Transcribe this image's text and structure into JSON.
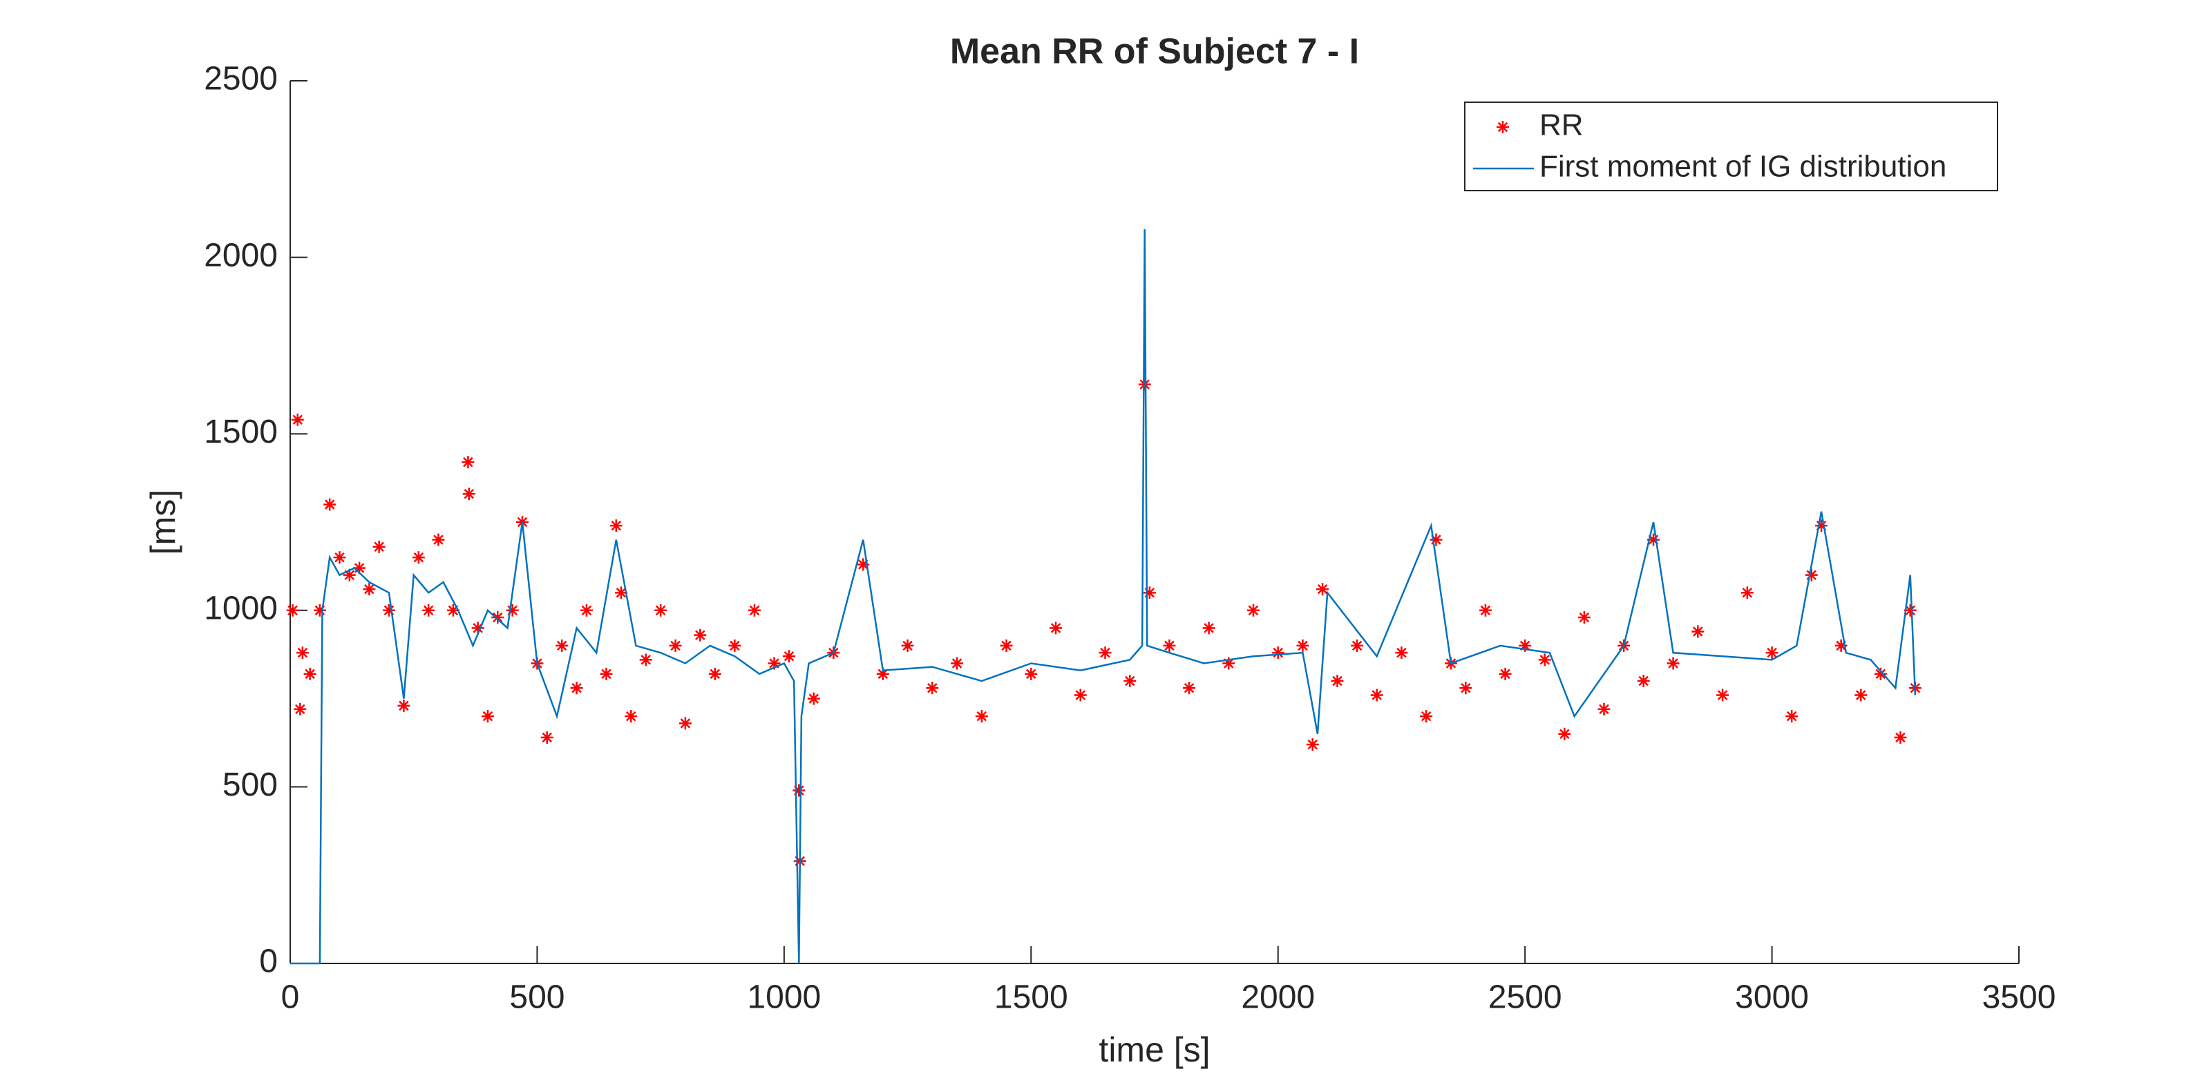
{
  "chart_data": {
    "type": "scatter-line",
    "title": "Mean RR of Subject 7 - I",
    "xlabel": "time [s]",
    "ylabel": "[ms]",
    "xlim": [
      0,
      3500
    ],
    "xticks": [
      0,
      500,
      1000,
      1500,
      2000,
      2500,
      3000,
      3500
    ],
    "ylim": [
      0,
      2500
    ],
    "yticks": [
      0,
      500,
      1000,
      1500,
      2000,
      2500
    ],
    "legend": "northeast",
    "series": [
      {
        "name": "RR",
        "kind": "marker",
        "color": "#ff0000",
        "x": [
          5,
          15,
          20,
          25,
          40,
          60,
          80,
          100,
          120,
          140,
          160,
          180,
          200,
          230,
          260,
          280,
          300,
          330,
          360,
          362,
          380,
          400,
          420,
          450,
          470,
          500,
          520,
          550,
          580,
          600,
          640,
          660,
          670,
          690,
          720,
          750,
          780,
          800,
          830,
          860,
          900,
          940,
          980,
          1010,
          1030,
          1032,
          1060,
          1100,
          1160,
          1200,
          1250,
          1300,
          1350,
          1400,
          1450,
          1500,
          1550,
          1600,
          1650,
          1700,
          1730,
          1740,
          1780,
          1820,
          1860,
          1900,
          1950,
          2000,
          2050,
          2070,
          2090,
          2120,
          2160,
          2200,
          2250,
          2300,
          2320,
          2350,
          2380,
          2420,
          2460,
          2500,
          2540,
          2580,
          2620,
          2660,
          2700,
          2740,
          2760,
          2800,
          2850,
          2900,
          2950,
          3000,
          3040,
          3080,
          3100,
          3140,
          3180,
          3220,
          3260,
          3280,
          3290
        ],
        "values": [
          1000,
          1540,
          720,
          880,
          820,
          1000,
          1300,
          1150,
          1100,
          1120,
          1060,
          1180,
          1000,
          730,
          1150,
          1000,
          1200,
          1000,
          1420,
          1330,
          950,
          700,
          980,
          1000,
          1250,
          850,
          640,
          900,
          780,
          1000,
          820,
          1240,
          1050,
          700,
          860,
          1000,
          900,
          680,
          930,
          820,
          900,
          1000,
          850,
          870,
          490,
          290,
          750,
          880,
          1130,
          820,
          900,
          780,
          850,
          700,
          900,
          820,
          950,
          760,
          880,
          800,
          1640,
          1050,
          900,
          780,
          950,
          850,
          1000,
          880,
          900,
          620,
          1060,
          800,
          900,
          760,
          880,
          700,
          1200,
          850,
          780,
          1000,
          820,
          900,
          860,
          650,
          980,
          720,
          900,
          800,
          1200,
          850,
          940,
          760,
          1050,
          880,
          700,
          1100,
          1240,
          900,
          760,
          820,
          640,
          1000,
          780
        ]
      },
      {
        "name": "First moment of IG distribution",
        "kind": "line",
        "color": "#0072bd",
        "x": [
          0,
          60,
          65,
          80,
          100,
          130,
          160,
          200,
          230,
          250,
          280,
          310,
          340,
          370,
          400,
          440,
          470,
          500,
          540,
          580,
          620,
          660,
          700,
          750,
          800,
          850,
          900,
          950,
          1000,
          1020,
          1030,
          1035,
          1050,
          1100,
          1160,
          1200,
          1300,
          1400,
          1500,
          1600,
          1700,
          1725,
          1730,
          1735,
          1780,
          1850,
          1950,
          2050,
          2080,
          2100,
          2200,
          2310,
          2350,
          2450,
          2550,
          2600,
          2700,
          2760,
          2800,
          2900,
          3000,
          3050,
          3100,
          3150,
          3200,
          3250,
          3280,
          3290
        ],
        "values": [
          0,
          0,
          1000,
          1150,
          1100,
          1120,
          1080,
          1050,
          750,
          1100,
          1050,
          1080,
          1000,
          900,
          1000,
          950,
          1250,
          850,
          700,
          950,
          880,
          1200,
          900,
          880,
          850,
          900,
          870,
          820,
          850,
          800,
          0,
          700,
          850,
          880,
          1200,
          830,
          840,
          800,
          850,
          830,
          860,
          900,
          2080,
          900,
          880,
          850,
          870,
          880,
          650,
          1050,
          870,
          1240,
          850,
          900,
          880,
          700,
          900,
          1250,
          880,
          870,
          860,
          900,
          1280,
          880,
          860,
          780,
          1100,
          760
        ]
      }
    ]
  }
}
